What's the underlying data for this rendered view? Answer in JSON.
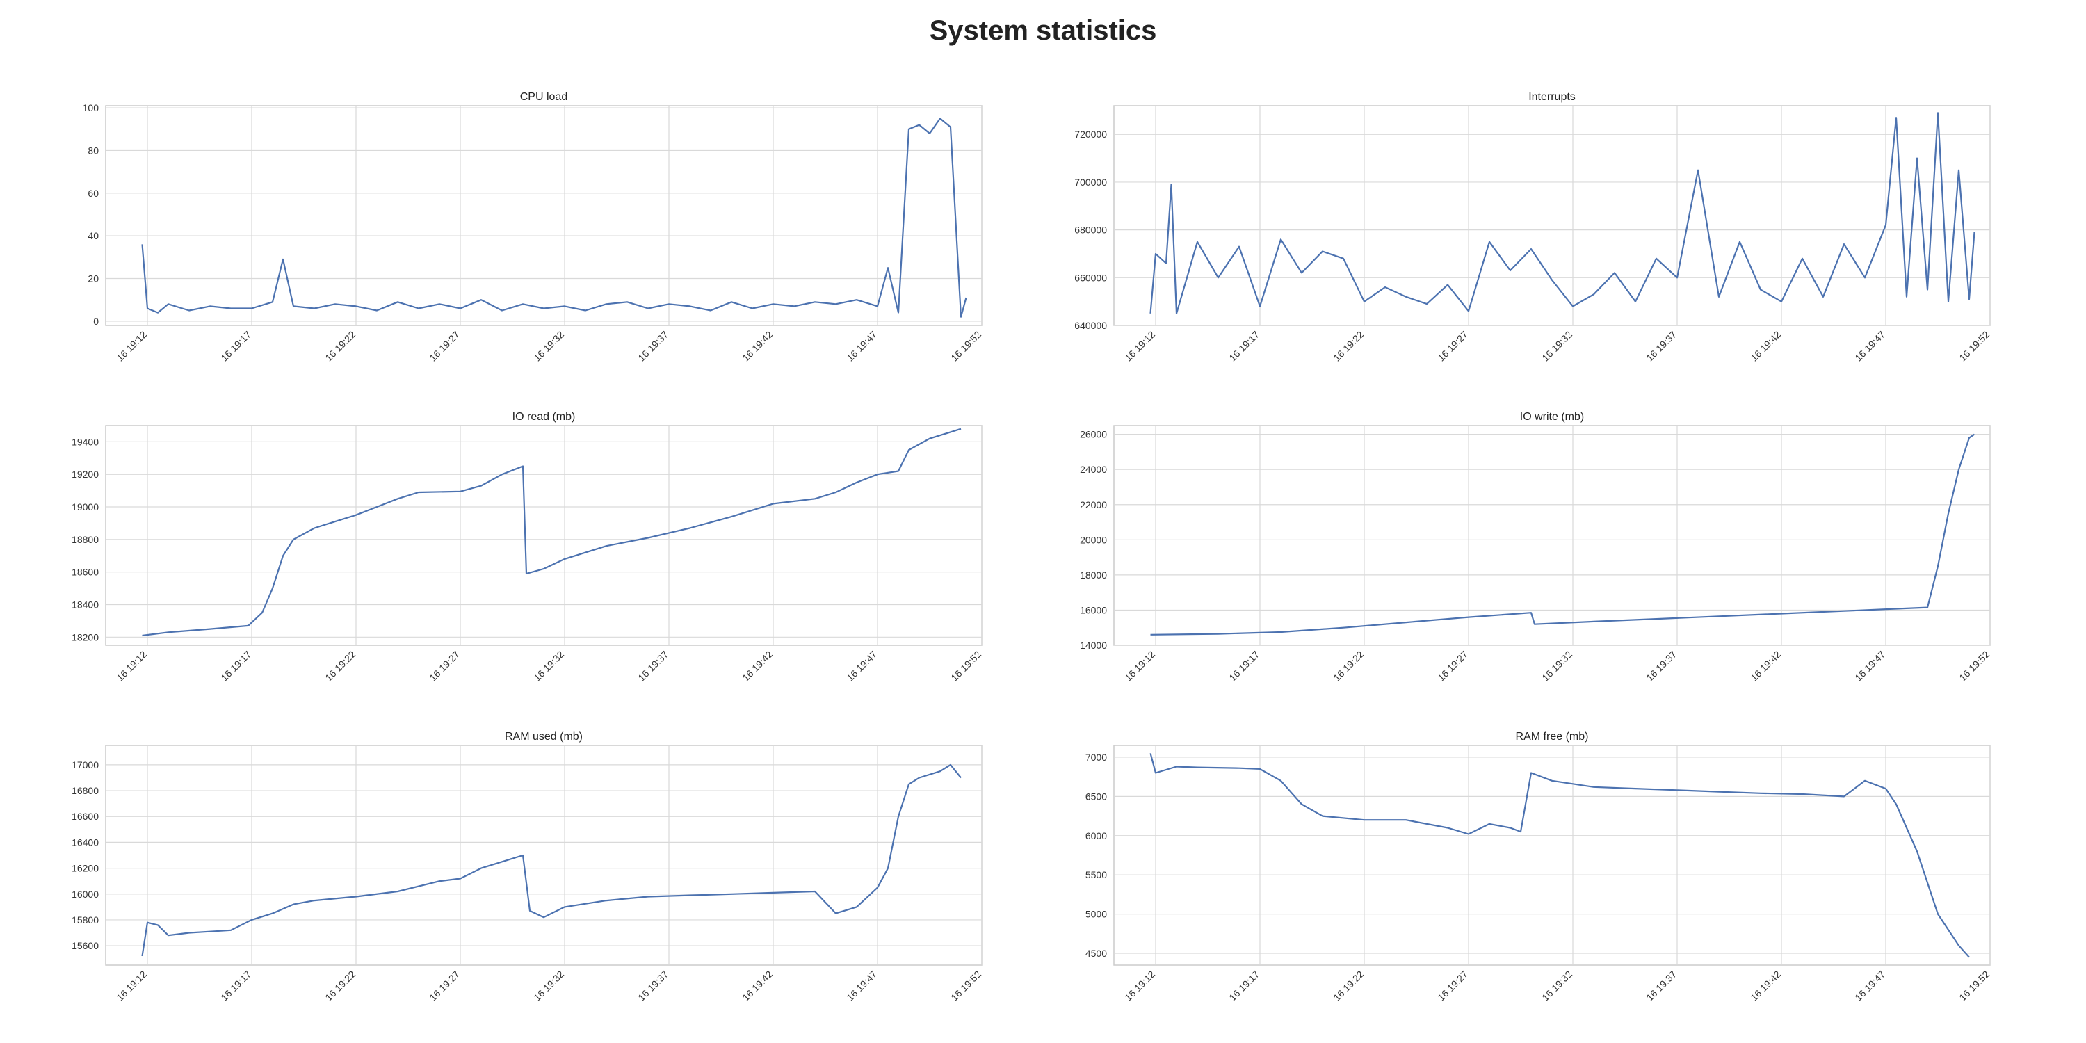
{
  "page_title": "System statistics",
  "colors": {
    "line": "#4c72b0",
    "grid": "#d9d9d9",
    "frame": "#cccccc",
    "background": "#ffffff"
  },
  "chart_data": [
    {
      "type": "line",
      "title": "CPU load",
      "grid": true,
      "xlabel": "",
      "ylabel": "",
      "x_range": [
        "16 19:10",
        "16 19:52"
      ],
      "x_ticks": [
        "16 19:12",
        "16 19:17",
        "16 19:22",
        "16 19:27",
        "16 19:32",
        "16 19:37",
        "16 19:42",
        "16 19:47",
        "16 19:52"
      ],
      "ylim": [
        -2,
        101
      ],
      "y_ticks": [
        0,
        20,
        40,
        60,
        80,
        100
      ],
      "series": [
        {
          "x": [
            "16 19:11:45",
            "16 19:12:00",
            "16 19:12:30",
            "16 19:13:00",
            "16 19:14:00",
            "16 19:15:00",
            "16 19:16:00",
            "16 19:17:00",
            "16 19:18:00",
            "16 19:18:30",
            "16 19:19:00",
            "16 19:20:00",
            "16 19:21:00",
            "16 19:22:00",
            "16 19:23:00",
            "16 19:24:00",
            "16 19:25:00",
            "16 19:26:00",
            "16 19:27:00",
            "16 19:28:00",
            "16 19:29:00",
            "16 19:30:00",
            "16 19:31:00",
            "16 19:32:00",
            "16 19:33:00",
            "16 19:34:00",
            "16 19:35:00",
            "16 19:36:00",
            "16 19:37:00",
            "16 19:38:00",
            "16 19:39:00",
            "16 19:40:00",
            "16 19:41:00",
            "16 19:42:00",
            "16 19:43:00",
            "16 19:44:00",
            "16 19:45:00",
            "16 19:46:00",
            "16 19:47:00",
            "16 19:47:30",
            "16 19:48:00",
            "16 19:48:30",
            "16 19:49:00",
            "16 19:49:30",
            "16 19:50:00",
            "16 19:50:30",
            "16 19:51:00",
            "16 19:51:15"
          ],
          "y": [
            36,
            6,
            4,
            8,
            5,
            7,
            6,
            6,
            9,
            29,
            7,
            6,
            8,
            7,
            5,
            9,
            6,
            8,
            6,
            10,
            5,
            8,
            6,
            7,
            5,
            8,
            9,
            6,
            8,
            7,
            5,
            9,
            6,
            8,
            7,
            9,
            8,
            10,
            7,
            25,
            4,
            90,
            92,
            88,
            95,
            91,
            2,
            11
          ]
        }
      ]
    },
    {
      "type": "line",
      "title": "Interrupts",
      "grid": true,
      "xlabel": "",
      "ylabel": "",
      "x_range": [
        "16 19:10",
        "16 19:52"
      ],
      "x_ticks": [
        "16 19:12",
        "16 19:17",
        "16 19:22",
        "16 19:27",
        "16 19:32",
        "16 19:37",
        "16 19:42",
        "16 19:47",
        "16 19:52"
      ],
      "ylim": [
        640000,
        732000
      ],
      "y_ticks": [
        640000,
        660000,
        680000,
        700000,
        720000
      ],
      "series": [
        {
          "x": [
            "16 19:11:45",
            "16 19:12:00",
            "16 19:12:30",
            "16 19:12:45",
            "16 19:13:00",
            "16 19:14:00",
            "16 19:15:00",
            "16 19:16:00",
            "16 19:17:00",
            "16 19:18:00",
            "16 19:19:00",
            "16 19:20:00",
            "16 19:21:00",
            "16 19:22:00",
            "16 19:23:00",
            "16 19:24:00",
            "16 19:25:00",
            "16 19:26:00",
            "16 19:27:00",
            "16 19:28:00",
            "16 19:29:00",
            "16 19:30:00",
            "16 19:31:00",
            "16 19:32:00",
            "16 19:33:00",
            "16 19:34:00",
            "16 19:35:00",
            "16 19:36:00",
            "16 19:37:00",
            "16 19:38:00",
            "16 19:39:00",
            "16 19:40:00",
            "16 19:41:00",
            "16 19:42:00",
            "16 19:43:00",
            "16 19:44:00",
            "16 19:45:00",
            "16 19:46:00",
            "16 19:47:00",
            "16 19:47:30",
            "16 19:48:00",
            "16 19:48:30",
            "16 19:49:00",
            "16 19:49:30",
            "16 19:50:00",
            "16 19:50:30",
            "16 19:51:00",
            "16 19:51:15"
          ],
          "y": [
            645000,
            670000,
            666000,
            699000,
            645000,
            675000,
            660000,
            673000,
            648000,
            676000,
            662000,
            671000,
            668000,
            650000,
            656000,
            652000,
            649000,
            657000,
            646000,
            675000,
            663000,
            672000,
            659000,
            648000,
            653000,
            662000,
            650000,
            668000,
            660000,
            705000,
            652000,
            675000,
            655000,
            650000,
            668000,
            652000,
            674000,
            660000,
            682000,
            727000,
            652000,
            710000,
            655000,
            729000,
            650000,
            705000,
            651000,
            679000
          ]
        }
      ]
    },
    {
      "type": "line",
      "title": "IO read (mb)",
      "grid": true,
      "xlabel": "",
      "ylabel": "",
      "x_range": [
        "16 19:10",
        "16 19:52"
      ],
      "x_ticks": [
        "16 19:12",
        "16 19:17",
        "16 19:22",
        "16 19:27",
        "16 19:32",
        "16 19:37",
        "16 19:42",
        "16 19:47",
        "16 19:52"
      ],
      "ylim": [
        18150,
        19500
      ],
      "y_ticks": [
        18200,
        18400,
        18600,
        18800,
        19000,
        19200,
        19400
      ],
      "series": [
        {
          "x": [
            "16 19:11:45",
            "16 19:13:00",
            "16 19:15:00",
            "16 19:16:50",
            "16 19:17:30",
            "16 19:18:00",
            "16 19:18:30",
            "16 19:19:00",
            "16 19:20:00",
            "16 19:21:00",
            "16 19:22:00",
            "16 19:23:00",
            "16 19:24:00",
            "16 19:25:00",
            "16 19:27:00",
            "16 19:28:00",
            "16 19:29:00",
            "16 19:30:00",
            "16 19:30:10",
            "16 19:31:00",
            "16 19:32:00",
            "16 19:34:00",
            "16 19:36:00",
            "16 19:38:00",
            "16 19:40:00",
            "16 19:42:00",
            "16 19:44:00",
            "16 19:45:00",
            "16 19:46:00",
            "16 19:47:00",
            "16 19:48:00",
            "16 19:48:30",
            "16 19:49:30",
            "16 19:50:30",
            "16 19:51:00"
          ],
          "y": [
            18210,
            18230,
            18250,
            18270,
            18350,
            18500,
            18700,
            18800,
            18870,
            18910,
            18950,
            19000,
            19050,
            19090,
            19095,
            19130,
            19200,
            19250,
            18590,
            18620,
            18680,
            18760,
            18810,
            18870,
            18940,
            19020,
            19050,
            19090,
            19150,
            19200,
            19220,
            19350,
            19420,
            19460,
            19480
          ]
        }
      ]
    },
    {
      "type": "line",
      "title": "IO write (mb)",
      "grid": true,
      "xlabel": "",
      "ylabel": "",
      "x_range": [
        "16 19:10",
        "16 19:52"
      ],
      "x_ticks": [
        "16 19:12",
        "16 19:17",
        "16 19:22",
        "16 19:27",
        "16 19:32",
        "16 19:37",
        "16 19:42",
        "16 19:47",
        "16 19:52"
      ],
      "ylim": [
        14000,
        26500
      ],
      "y_ticks": [
        14000,
        16000,
        18000,
        20000,
        22000,
        24000,
        26000
      ],
      "series": [
        {
          "x": [
            "16 19:11:45",
            "16 19:15:00",
            "16 19:18:00",
            "16 19:21:00",
            "16 19:24:00",
            "16 19:27:00",
            "16 19:30:00",
            "16 19:30:10",
            "16 19:33:00",
            "16 19:36:00",
            "16 19:39:00",
            "16 19:42:00",
            "16 19:45:00",
            "16 19:48:00",
            "16 19:49:00",
            "16 19:49:30",
            "16 19:50:00",
            "16 19:50:30",
            "16 19:51:00",
            "16 19:51:15"
          ],
          "y": [
            14600,
            14650,
            14750,
            15000,
            15300,
            15600,
            15850,
            15200,
            15350,
            15500,
            15650,
            15800,
            15950,
            16100,
            16150,
            18500,
            21500,
            24000,
            25800,
            26000
          ]
        }
      ]
    },
    {
      "type": "line",
      "title": "RAM used (mb)",
      "grid": true,
      "xlabel": "",
      "ylabel": "",
      "x_range": [
        "16 19:10",
        "16 19:52"
      ],
      "x_ticks": [
        "16 19:12",
        "16 19:17",
        "16 19:22",
        "16 19:27",
        "16 19:32",
        "16 19:37",
        "16 19:42",
        "16 19:47",
        "16 19:52"
      ],
      "ylim": [
        15450,
        17150
      ],
      "y_ticks": [
        15600,
        15800,
        16000,
        16200,
        16400,
        16600,
        16800,
        17000
      ],
      "series": [
        {
          "x": [
            "16 19:11:45",
            "16 19:12:00",
            "16 19:12:30",
            "16 19:13:00",
            "16 19:14:00",
            "16 19:15:00",
            "16 19:16:00",
            "16 19:17:00",
            "16 19:18:00",
            "16 19:19:00",
            "16 19:20:00",
            "16 19:22:00",
            "16 19:24:00",
            "16 19:26:00",
            "16 19:27:00",
            "16 19:28:00",
            "16 19:29:00",
            "16 19:30:00",
            "16 19:30:20",
            "16 19:31:00",
            "16 19:32:00",
            "16 19:34:00",
            "16 19:36:00",
            "16 19:38:00",
            "16 19:40:00",
            "16 19:42:00",
            "16 19:44:00",
            "16 19:45:00",
            "16 19:46:00",
            "16 19:47:00",
            "16 19:47:30",
            "16 19:48:00",
            "16 19:48:30",
            "16 19:49:00",
            "16 19:50:00",
            "16 19:50:30",
            "16 19:51:00"
          ],
          "y": [
            15520,
            15780,
            15760,
            15680,
            15700,
            15710,
            15720,
            15800,
            15850,
            15920,
            15950,
            15980,
            16020,
            16100,
            16120,
            16200,
            16250,
            16300,
            15870,
            15820,
            15900,
            15950,
            15980,
            15990,
            16000,
            16010,
            16020,
            15850,
            15900,
            16050,
            16200,
            16600,
            16850,
            16900,
            16950,
            17000,
            16900
          ]
        }
      ]
    },
    {
      "type": "line",
      "title": "RAM free (mb)",
      "grid": true,
      "xlabel": "",
      "ylabel": "",
      "x_range": [
        "16 19:10",
        "16 19:52"
      ],
      "x_ticks": [
        "16 19:12",
        "16 19:17",
        "16 19:22",
        "16 19:27",
        "16 19:32",
        "16 19:37",
        "16 19:42",
        "16 19:47",
        "16 19:52"
      ],
      "ylim": [
        4350,
        7150
      ],
      "y_ticks": [
        4500,
        5000,
        5500,
        6000,
        6500,
        7000
      ],
      "series": [
        {
          "x": [
            "16 19:11:45",
            "16 19:12:00",
            "16 19:13:00",
            "16 19:14:00",
            "16 19:16:00",
            "16 19:17:00",
            "16 19:18:00",
            "16 19:19:00",
            "16 19:20:00",
            "16 19:22:00",
            "16 19:24:00",
            "16 19:26:00",
            "16 19:27:00",
            "16 19:28:00",
            "16 19:29:00",
            "16 19:29:30",
            "16 19:30:00",
            "16 19:31:00",
            "16 19:33:00",
            "16 19:35:00",
            "16 19:37:00",
            "16 19:39:00",
            "16 19:41:00",
            "16 19:43:00",
            "16 19:45:00",
            "16 19:46:00",
            "16 19:47:00",
            "16 19:47:30",
            "16 19:48:00",
            "16 19:48:30",
            "16 19:49:00",
            "16 19:49:30",
            "16 19:50:00",
            "16 19:50:30",
            "16 19:51:00"
          ],
          "y": [
            7050,
            6800,
            6880,
            6870,
            6860,
            6850,
            6700,
            6400,
            6250,
            6200,
            6200,
            6100,
            6020,
            6150,
            6100,
            6050,
            6800,
            6700,
            6620,
            6600,
            6580,
            6560,
            6540,
            6530,
            6500,
            6700,
            6600,
            6400,
            6100,
            5800,
            5400,
            5000,
            4800,
            4600,
            4450
          ]
        }
      ]
    }
  ]
}
